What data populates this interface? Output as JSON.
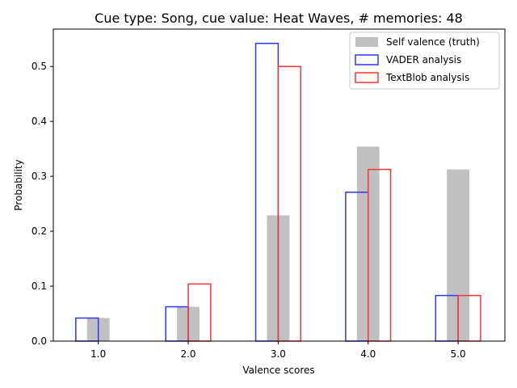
{
  "chart_data": {
    "type": "bar",
    "title": "Cue type: Song, cue value: Heat Waves, # memories: 48",
    "xlabel": "Valence scores",
    "ylabel": "Probability",
    "categories": [
      "1.0",
      "2.0",
      "3.0",
      "4.0",
      "5.0"
    ],
    "x": [
      1,
      2,
      3,
      4,
      5
    ],
    "xlim": [
      0.5,
      5.52
    ],
    "ylim": [
      0,
      0.568
    ],
    "yticks": [
      "0.0",
      "0.1",
      "0.2",
      "0.3",
      "0.4",
      "0.5"
    ],
    "ytick_values": [
      0,
      0.1,
      0.2,
      0.3,
      0.4,
      0.5
    ],
    "grid": false,
    "legend_position": "top-right",
    "series": [
      {
        "name": "Self valence (truth)",
        "style": "filled",
        "color": "#c0c0c0",
        "offset": 0,
        "values": [
          0.042,
          0.0625,
          0.229,
          0.354,
          0.3125
        ]
      },
      {
        "name": "VADER analysis",
        "style": "outline",
        "color": "#3333ff",
        "offset": -0.125,
        "values": [
          0.042,
          0.0625,
          0.542,
          0.271,
          0.083
        ]
      },
      {
        "name": "TextBlob analysis",
        "style": "outline",
        "color": "#ff3333",
        "offset": 0.125,
        "values": [
          0.0,
          0.104,
          0.5,
          0.3125,
          0.083
        ]
      }
    ]
  }
}
